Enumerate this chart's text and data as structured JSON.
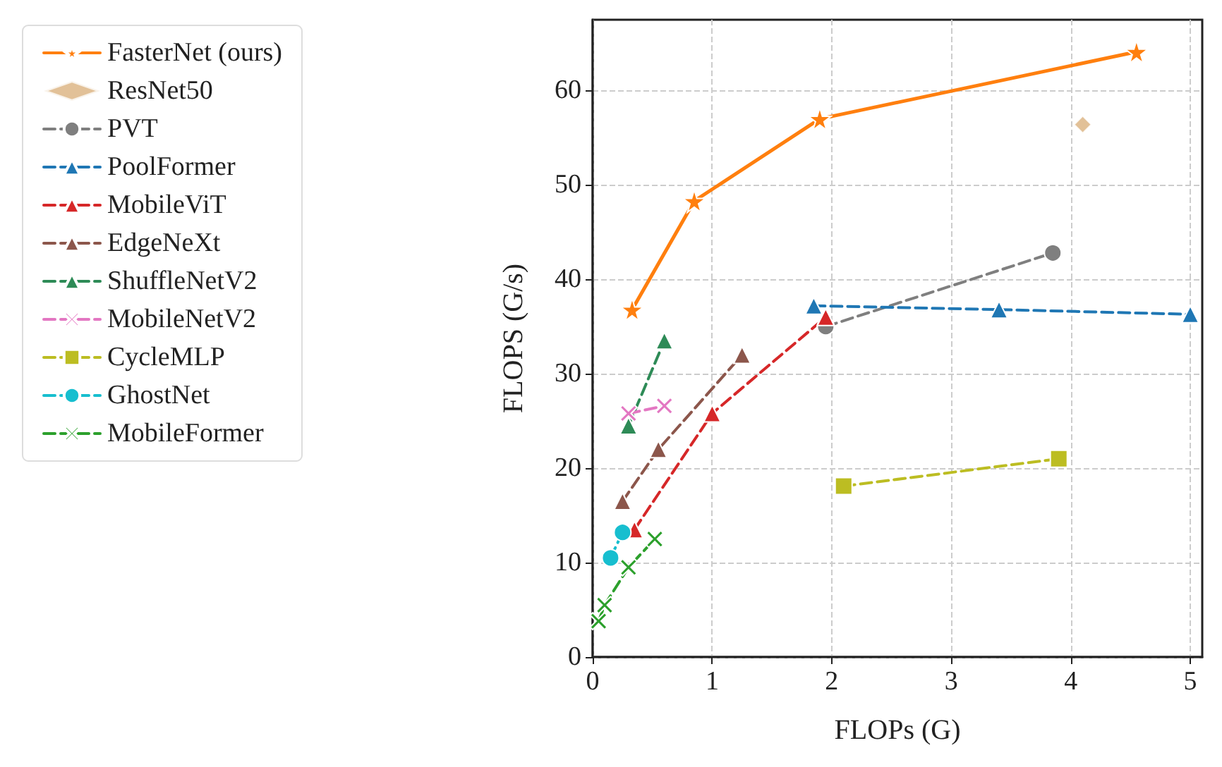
{
  "chart_data": {
    "type": "line",
    "xlabel": "FLOPs (G)",
    "ylabel": "FLOPS (G/s)",
    "xlim": [
      0,
      5.1
    ],
    "xticks": [
      0,
      1,
      2,
      3,
      4,
      5
    ],
    "ylim": [
      0,
      67.5
    ],
    "yticks": [
      0,
      10,
      20,
      30,
      40,
      50,
      60
    ],
    "grid": true,
    "legend": "left",
    "series": [
      {
        "name": "FasterNet (ours)",
        "color": "#ff7f0e",
        "marker": "star",
        "line_style": "solid",
        "x": [
          0.33,
          0.85,
          1.9,
          4.55
        ],
        "values": [
          36.8,
          48.3,
          57,
          64.1
        ]
      },
      {
        "name": "ResNet50",
        "type": "scatter",
        "color": "#dbb27e",
        "marker": "diamond",
        "x": [
          4.1
        ],
        "values": [
          56.4
        ]
      },
      {
        "name": "PVT",
        "color": "#7f7f7f",
        "marker": "circle",
        "line_style": "dashed",
        "x": [
          1.95,
          3.85
        ],
        "values": [
          35,
          42.8
        ]
      },
      {
        "name": "PoolFormer",
        "color": "#1f77b4",
        "marker": "triangle",
        "line_style": "dashed",
        "x": [
          1.85,
          3.4,
          5.0
        ],
        "values": [
          37.2,
          36.8,
          36.3
        ]
      },
      {
        "name": "MobileViT",
        "color": "#d62728",
        "marker": "triangle",
        "line_style": "dashed",
        "x": [
          0.35,
          1.0,
          1.95
        ],
        "values": [
          13.5,
          25.8,
          36
        ]
      },
      {
        "name": "EdgeNeXt",
        "color": "#8c564b",
        "marker": "triangle",
        "line_style": "dashed",
        "x": [
          0.25,
          0.55,
          1.25
        ],
        "values": [
          16.5,
          22,
          32
        ]
      },
      {
        "name": "ShuffleNetV2",
        "color": "#2e8b57",
        "marker": "triangle",
        "line_style": "dashed",
        "x": [
          0.3,
          0.6
        ],
        "values": [
          24.5,
          33.5
        ]
      },
      {
        "name": "MobileNetV2",
        "color": "#e377c2",
        "marker": "cross",
        "line_style": "dashed",
        "x": [
          0.3,
          0.6
        ],
        "values": [
          25.8,
          26.6
        ]
      },
      {
        "name": "CycleMLP",
        "color": "#bcbd22",
        "marker": "square",
        "line_style": "dashed",
        "x": [
          2.1,
          3.9
        ],
        "values": [
          18.1,
          21
        ]
      },
      {
        "name": "GhostNet",
        "color": "#17becf",
        "marker": "circle",
        "line_style": "dashed",
        "x": [
          0.15,
          0.25
        ],
        "values": [
          10.5,
          13.2
        ]
      },
      {
        "name": "MobileFormer",
        "color": "#2ca02c",
        "marker": "cross",
        "line_style": "dashed",
        "x": [
          0.05,
          0.1,
          0.3,
          0.52
        ],
        "values": [
          3.8,
          5.5,
          9.5,
          12.5
        ]
      }
    ]
  }
}
